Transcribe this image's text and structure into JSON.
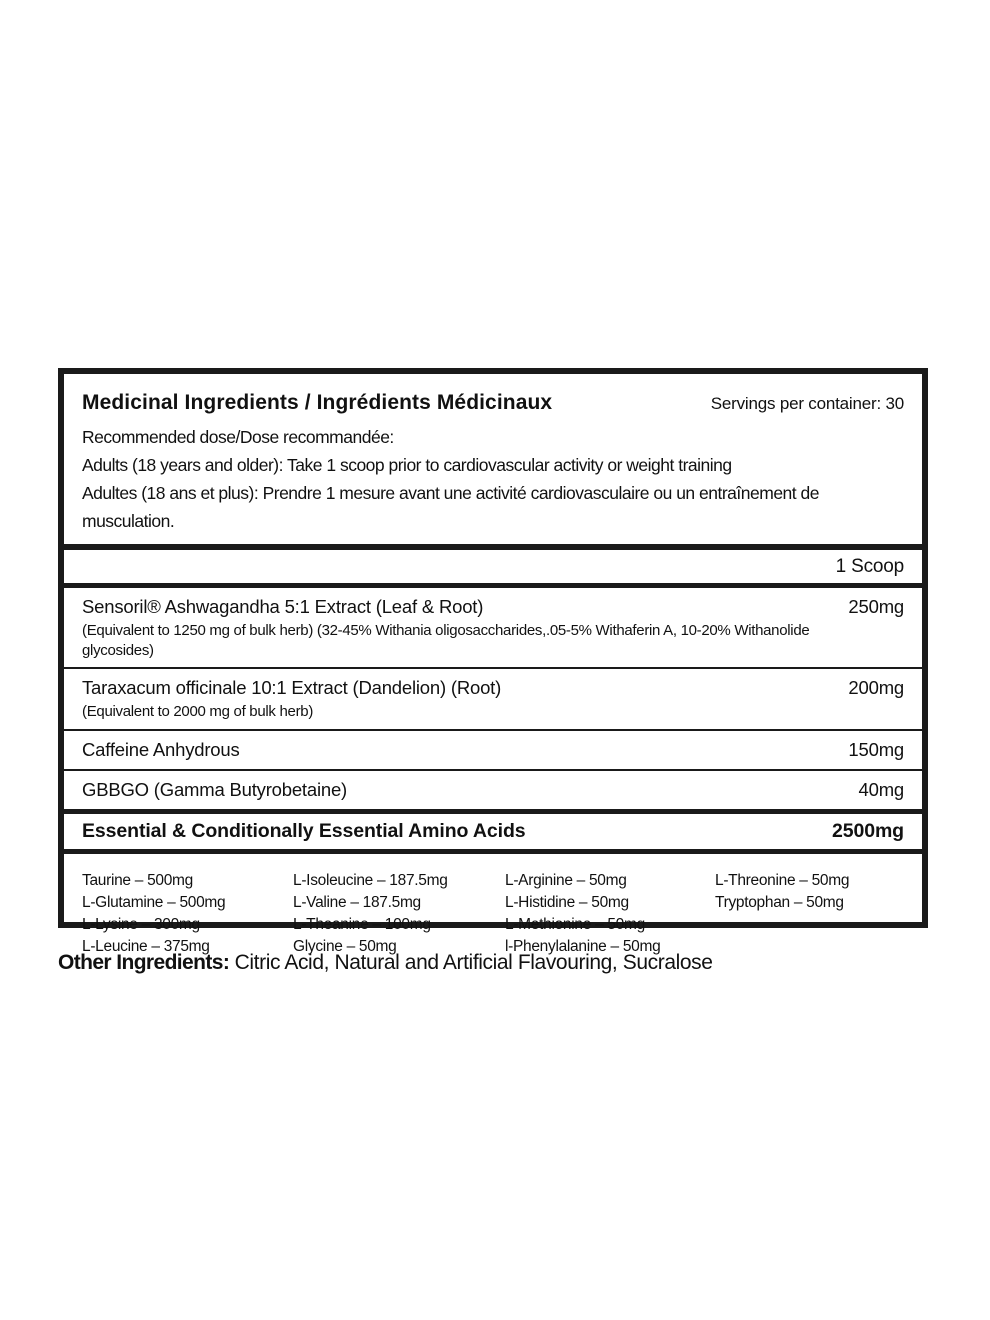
{
  "label": {
    "title": "Medicinal Ingredients / Ingrédients Médicinaux",
    "servings": "Servings per container: 30",
    "dose_lines": [
      "Recommended dose/Dose recommandée:",
      "Adults (18 years and older): Take 1 scoop prior to cardiovascular activity or weight training",
      "Adultes (18 ans et plus): Prendre 1 mesure avant une activité cardiovasculaire ou un entraînement de musculation."
    ],
    "scoop_header": "1 Scoop",
    "ingredients": [
      {
        "name": "Sensoril® Ashwagandha 5:1 Extract (Leaf & Root)",
        "amount": "250mg",
        "note": "(Equivalent to 1250 mg of bulk herb) (32-45% Withania oligosaccharides,.05-5% Withaferin A, 10-20% Withanolide glycosides)"
      },
      {
        "name": "Taraxacum officinale 10:1 Extract (Dandelion) (Root)",
        "amount": "200mg",
        "note": "(Equivalent to 2000 mg of bulk herb)"
      },
      {
        "name": "Caffeine Anhydrous",
        "amount": "150mg",
        "note": ""
      },
      {
        "name": "GBBGO (Gamma Butyrobetaine)",
        "amount": "40mg",
        "note": ""
      }
    ],
    "amino": {
      "heading": "Essential & Conditionally Essential Amino Acids",
      "amount": "2500mg",
      "columns": [
        [
          "Taurine – 500mg",
          "L-Glutamine – 500mg",
          "L-Lysine – 300mg",
          "L-Leucine – 375mg"
        ],
        [
          "L-Isoleucine – 187.5mg",
          "L-Valine – 187.5mg",
          "L-Theanine – 100mg",
          "Glycine – 50mg"
        ],
        [
          "L-Arginine – 50mg",
          "L-Histidine – 50mg",
          "L-Methionine – 50mg",
          "l-Phenylalanine – 50mg"
        ],
        [
          "L-Threonine – 50mg",
          "Tryptophan – 50mg"
        ]
      ]
    }
  },
  "footer": {
    "other_label": "Other Ingredients:",
    "other_text": " Citric Acid, Natural and Artificial Flavouring, Sucralose"
  }
}
